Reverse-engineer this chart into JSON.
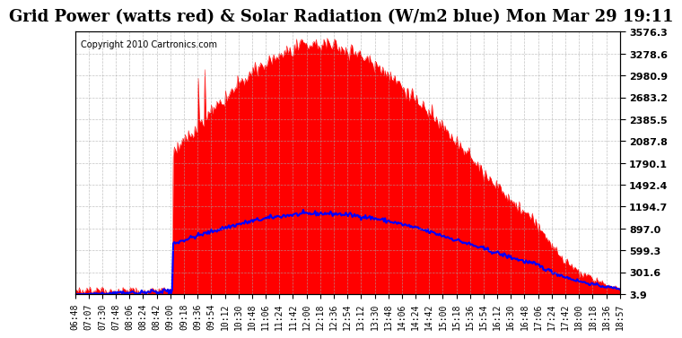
{
  "title": "Grid Power (watts red) & Solar Radiation (W/m2 blue) Mon Mar 29 19:11",
  "copyright": "Copyright 2010 Cartronics.com",
  "yticks": [
    3.9,
    301.6,
    599.3,
    897.0,
    1194.7,
    1492.4,
    1790.1,
    2087.8,
    2385.5,
    2683.2,
    2980.9,
    3278.6,
    3576.3
  ],
  "ymin": 3.9,
  "ymax": 3576.3,
  "background_color": "#ffffff",
  "plot_bg_color": "#ffffff",
  "grid_color": "#aaaaaa",
  "red_color": "#ff0000",
  "blue_color": "#0000ff",
  "title_fontsize": 13,
  "copyright_fontsize": 7,
  "xtick_fontsize": 7,
  "ytick_fontsize": 8,
  "xtick_labels": [
    "06:48",
    "07:07",
    "07:30",
    "07:48",
    "08:06",
    "08:24",
    "08:42",
    "09:00",
    "09:18",
    "09:36",
    "09:54",
    "10:12",
    "10:30",
    "10:48",
    "11:06",
    "11:24",
    "11:42",
    "12:00",
    "12:18",
    "12:36",
    "12:54",
    "13:12",
    "13:30",
    "13:48",
    "14:06",
    "14:24",
    "14:42",
    "15:00",
    "15:18",
    "15:36",
    "15:54",
    "16:12",
    "16:30",
    "16:48",
    "17:06",
    "17:24",
    "17:42",
    "18:00",
    "18:18",
    "18:36",
    "18:57"
  ]
}
